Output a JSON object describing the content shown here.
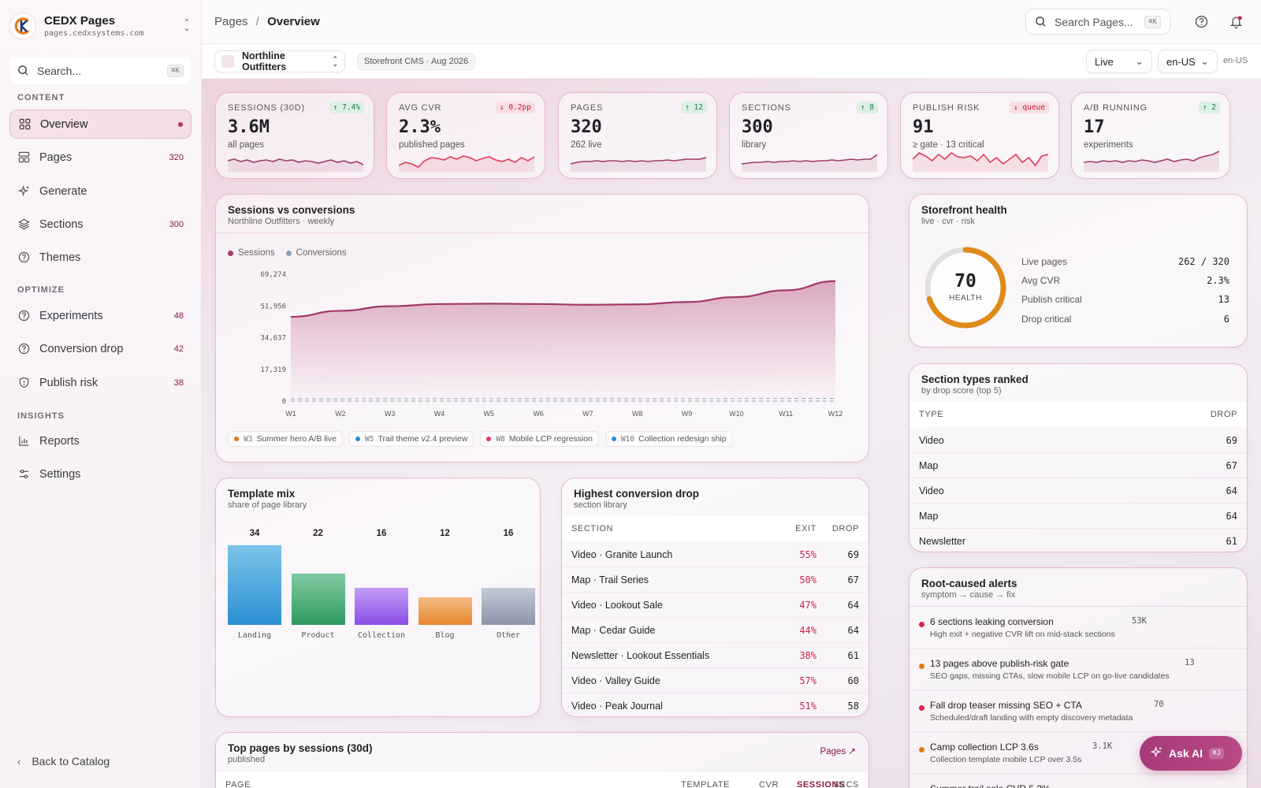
{
  "brand": {
    "name": "CEDX Pages",
    "url": "pages.cedxsystems.com"
  },
  "sidebar": {
    "search_placeholder": "Search...",
    "search_kbd": "⌘K",
    "sections": {
      "content": "CONTENT",
      "optimize": "OPTIMIZE",
      "insights": "INSIGHTS"
    },
    "items": [
      {
        "label": "Overview",
        "count": ""
      },
      {
        "label": "Pages",
        "count": "320"
      },
      {
        "label": "Generate",
        "count": ""
      },
      {
        "label": "Sections",
        "count": "300"
      },
      {
        "label": "Themes",
        "count": ""
      },
      {
        "label": "Experiments",
        "count": "48"
      },
      {
        "label": "Conversion drop",
        "count": "42"
      },
      {
        "label": "Publish risk",
        "count": "38"
      },
      {
        "label": "Reports",
        "count": ""
      },
      {
        "label": "Settings",
        "count": ""
      }
    ],
    "back_label": "Back to Catalog"
  },
  "header": {
    "breadcrumb_parent": "Pages",
    "breadcrumb_sep": "/",
    "breadcrumb_current": "Overview",
    "search_placeholder": "Search Pages...",
    "search_kbd": "⌘K"
  },
  "subbar": {
    "store": "Northline Outfitters",
    "meta": "Storefront CMS · Aug 2026",
    "status": "Live",
    "locale": "en-US",
    "locale_text": "en-US"
  },
  "kpis": [
    {
      "label": "SESSIONS (30D)",
      "value": "3.6M",
      "sub": "all pages",
      "delta": "↑ 7.4%",
      "dir": "up",
      "color": "#a13a6a"
    },
    {
      "label": "AVG CVR",
      "value": "2.3%",
      "sub": "published pages",
      "delta": "↓ 0.2pp",
      "dir": "down",
      "color": "#e03a5c"
    },
    {
      "label": "PAGES",
      "value": "320",
      "sub": "262 live",
      "delta": "↑ 12",
      "dir": "up",
      "color": "#a13a6a"
    },
    {
      "label": "SECTIONS",
      "value": "300",
      "sub": "library",
      "delta": "↑ 8",
      "dir": "up",
      "color": "#a13a6a"
    },
    {
      "label": "PUBLISH RISK",
      "value": "91",
      "sub": "≥ gate · 13 critical",
      "delta": "↓ queue",
      "dir": "down",
      "color": "#e03a5c"
    },
    {
      "label": "A/B RUNNING",
      "value": "17",
      "sub": "experiments",
      "delta": "↑ 2",
      "dir": "up",
      "color": "#a13a6a"
    }
  ],
  "sessions_chart": {
    "title": "Sessions vs conversions",
    "subtitle": "Northline Outfitters · weekly",
    "legend": [
      {
        "name": "Sessions",
        "color": "#a13a6a"
      },
      {
        "name": "Conversions",
        "color": "#8fa0b8"
      }
    ],
    "annotations": [
      {
        "week": "W3",
        "text": "Summer hero A/B live",
        "color": "#e07b1a"
      },
      {
        "week": "W5",
        "text": "Trail theme v2.4 preview",
        "color": "#2a8ad0"
      },
      {
        "week": "W8",
        "text": "Mobile LCP regression",
        "color": "#e03a5c"
      },
      {
        "week": "W10",
        "text": "Collection redesign ship",
        "color": "#2a8ad0"
      }
    ]
  },
  "chart_data": {
    "type": "area",
    "x": [
      "W1",
      "W2",
      "W3",
      "W4",
      "W5",
      "W6",
      "W7",
      "W8",
      "W9",
      "W10",
      "W11",
      "W12"
    ],
    "yticks": [
      "0",
      "17,319",
      "34,637",
      "51,956",
      "69,274"
    ],
    "ylim": [
      0,
      69274
    ],
    "series": [
      {
        "name": "Sessions",
        "values": [
          46000,
          49300,
          51800,
          53000,
          53200,
          53000,
          52600,
          52800,
          54100,
          56800,
          60500,
          65500
        ]
      },
      {
        "name": "Conversions",
        "values": [
          1200,
          1250,
          1300,
          1320,
          1330,
          1320,
          1300,
          1310,
          1340,
          1380,
          1420,
          1480
        ]
      }
    ],
    "grid": true,
    "legend": "top-left"
  },
  "health": {
    "title": "Storefront health",
    "subtitle": "live · cvr · risk",
    "score": "70",
    "score_label": "HEALTH",
    "score_fraction": 0.7,
    "rows": [
      {
        "label": "Live pages",
        "value": "262 / 320"
      },
      {
        "label": "Avg CVR",
        "value": "2.3%"
      },
      {
        "label": "Publish critical",
        "value": "13"
      },
      {
        "label": "Drop critical",
        "value": "6"
      }
    ]
  },
  "section_types": {
    "title": "Section types ranked",
    "subtitle": "by drop score (top 5)",
    "col_type": "TYPE",
    "col_drop": "DROP",
    "rows": [
      {
        "type": "Video",
        "drop": "69"
      },
      {
        "type": "Map",
        "drop": "67"
      },
      {
        "type": "Video",
        "drop": "64"
      },
      {
        "type": "Map",
        "drop": "64"
      },
      {
        "type": "Newsletter",
        "drop": "61"
      }
    ]
  },
  "template_mix": {
    "title": "Template mix",
    "subtitle": "share of page library",
    "bars": [
      {
        "label": "Landing",
        "value": 34,
        "display": "34",
        "c1": "#7cc4ec",
        "c2": "#2b8fd0"
      },
      {
        "label": "Product",
        "value": 22,
        "display": "22",
        "c1": "#7fcaa0",
        "c2": "#2e9a62"
      },
      {
        "label": "Collection",
        "value": 16,
        "display": "16",
        "c1": "#c29cf6",
        "c2": "#8a4fe8"
      },
      {
        "label": "Blog",
        "value": 12,
        "display": "12",
        "c1": "#f3bc85",
        "c2": "#e5862c"
      },
      {
        "label": "Other",
        "value": 16,
        "display": "16",
        "c1": "#c3c9d6",
        "c2": "#8c95a8"
      }
    ]
  },
  "conv_drop": {
    "title": "Highest conversion drop",
    "subtitle": "section library",
    "col_section": "SECTION",
    "col_exit": "EXIT",
    "col_drop": "DROP",
    "rows": [
      {
        "section": "Video · Granite Launch",
        "exit": "55%",
        "drop": "69"
      },
      {
        "section": "Map · Trail Series",
        "exit": "50%",
        "drop": "67"
      },
      {
        "section": "Video · Lookout Sale",
        "exit": "47%",
        "drop": "64"
      },
      {
        "section": "Map · Cedar Guide",
        "exit": "44%",
        "drop": "64"
      },
      {
        "section": "Newsletter · Lookout Essentials",
        "exit": "38%",
        "drop": "61"
      },
      {
        "section": "Video · Valley Guide",
        "exit": "57%",
        "drop": "60"
      },
      {
        "section": "Video · Peak Journal",
        "exit": "51%",
        "drop": "58"
      }
    ]
  },
  "top_pages": {
    "title": "Top pages by sessions (30d)",
    "subtitle": "published",
    "link": "Pages",
    "cols": [
      "PAGE",
      "TEMPLATE",
      "CVR",
      "SESSIONS",
      "SECS"
    ]
  },
  "alerts": {
    "title": "Root-caused alerts",
    "subtitle": "symptom → cause → fix",
    "items": [
      {
        "title": "6 sections leaking conversion",
        "sub": "High exit + negative CVR lift on mid-stack sections",
        "count": "53K",
        "color": "#e0224a"
      },
      {
        "title": "13 pages above publish-risk gate",
        "sub": "SEO gaps, missing CTAs, slow mobile LCP on go-live candidates",
        "count": "13",
        "color": "#e07b1a"
      },
      {
        "title": "Fall drop teaser missing SEO + CTA",
        "sub": "Scheduled/draft landing with empty discovery metadata",
        "count": "70",
        "color": "#e0224a"
      },
      {
        "title": "Camp collection LCP 3.6s",
        "sub": "Collection template mobile LCP over 3.5s",
        "count": "3.1K",
        "color": "#e07b1a"
      },
      {
        "title": "Summer trail sale CVR 5.2%",
        "sub": "",
        "count": "",
        "color": "#e07b1a"
      }
    ]
  },
  "ask_ai": {
    "label": "Ask AI",
    "kbd": "⌘J"
  }
}
